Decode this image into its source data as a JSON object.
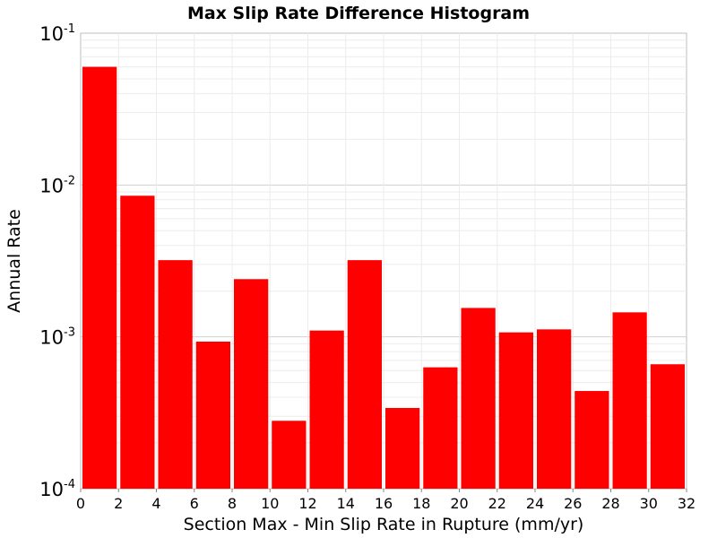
{
  "chart_data": {
    "type": "bar",
    "title": "Max Slip Rate Difference Histogram",
    "xlabel": "Section Max - Min Slip Rate in Rupture (mm/yr)",
    "ylabel": "Annual Rate",
    "y_scale": "log",
    "xlim": [
      0,
      32
    ],
    "ylim": [
      0.0001,
      0.1
    ],
    "bin_width": 2,
    "x_ticks": [
      "0",
      "2",
      "4",
      "6",
      "8",
      "10",
      "12",
      "14",
      "16",
      "18",
      "20",
      "22",
      "24",
      "26",
      "28",
      "30",
      "32"
    ],
    "y_ticks": [
      {
        "base": "10",
        "exp": "-1",
        "value": 0.1
      },
      {
        "base": "10",
        "exp": "-2",
        "value": 0.01
      },
      {
        "base": "10",
        "exp": "-3",
        "value": 0.001
      },
      {
        "base": "10",
        "exp": "-4",
        "value": 0.0001
      }
    ],
    "bin_centers": [
      1,
      3,
      5,
      7,
      9,
      11,
      13,
      15,
      17,
      19,
      21,
      23,
      25,
      27,
      29,
      31
    ],
    "values": [
      0.06,
      0.0085,
      0.0032,
      0.00093,
      0.0024,
      0.00028,
      0.0011,
      0.0032,
      0.00034,
      0.00063,
      0.00155,
      0.00107,
      0.00112,
      0.00044,
      0.00145,
      0.00066
    ],
    "bar_color": "#ff0000",
    "grid": true
  }
}
